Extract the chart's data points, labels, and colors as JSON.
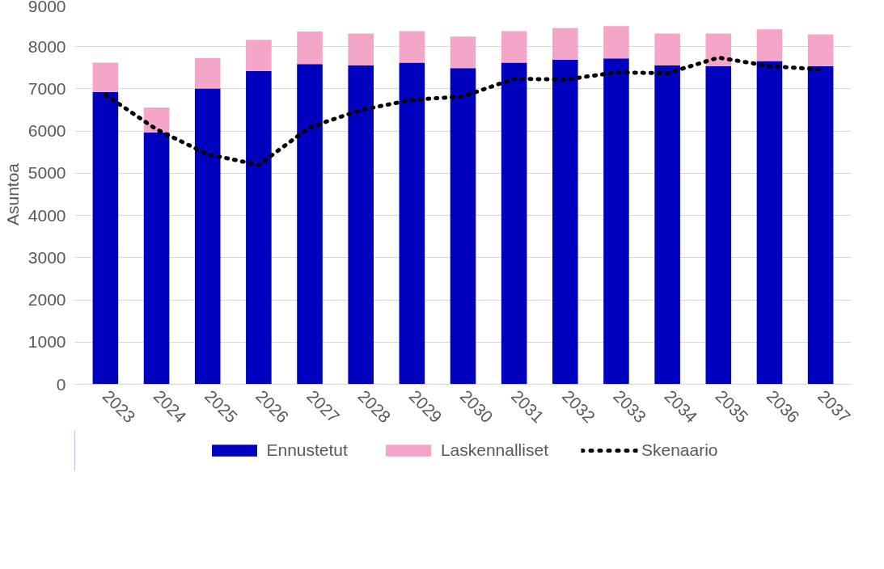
{
  "chart_data": {
    "type": "bar",
    "ylabel": "Asuntoa",
    "categories": [
      "2023",
      "2024",
      "2025",
      "2026",
      "2027",
      "2028",
      "2029",
      "2030",
      "2031",
      "2032",
      "2033",
      "2034",
      "2035",
      "2036",
      "2037"
    ],
    "stacked": true,
    "ylim": [
      0,
      9000
    ],
    "yticks": [
      0,
      1000,
      2000,
      3000,
      4000,
      5000,
      6000,
      7000,
      8000,
      9000
    ],
    "grid": "y",
    "legend": "bottom",
    "series": [
      {
        "name": "Ennustetut",
        "color": "#0000bf",
        "values": [
          6920,
          5970,
          7010,
          7420,
          7590,
          7560,
          7620,
          7490,
          7620,
          7690,
          7720,
          7560,
          7540,
          7660,
          7540
        ]
      },
      {
        "name": "Laskennalliset",
        "color": "#f4a6c8",
        "values": [
          700,
          590,
          720,
          740,
          770,
          750,
          750,
          750,
          750,
          750,
          770,
          750,
          770,
          750,
          750
        ]
      },
      {
        "name": "Skenaario",
        "type": "line",
        "color": "#000000",
        "line_style": "dotted",
        "marker": "none",
        "values": [
          6860,
          6040,
          5450,
          5200,
          6090,
          6500,
          6740,
          6820,
          7240,
          7220,
          7390,
          7370,
          7740,
          7540,
          7460
        ]
      }
    ]
  }
}
